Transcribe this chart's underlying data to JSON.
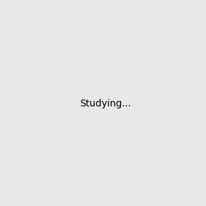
{
  "background_color": "#e8e8e8",
  "bond_color": "#2d7a6b",
  "nitrogen_color": "#0000cc",
  "oxygen_color": "#cc0000",
  "figsize": [
    3.0,
    3.0
  ],
  "dpi": 100,
  "lw": 1.5
}
